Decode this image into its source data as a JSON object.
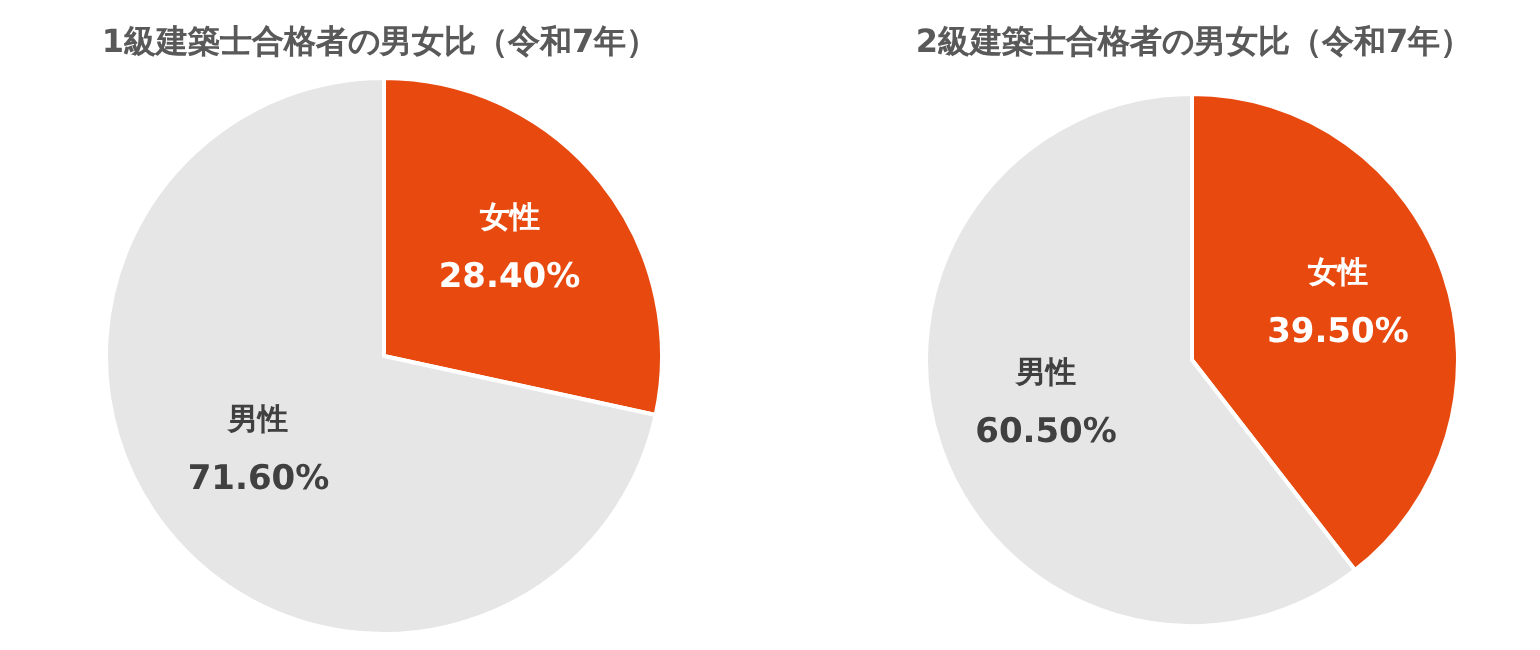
{
  "chart_data": [
    {
      "type": "pie",
      "title": "1級建築士合格者の男女比（令和7年）",
      "categories": [
        "女性",
        "男性"
      ],
      "values": [
        28.4,
        71.6
      ],
      "colors": [
        "#e8490f",
        "#e6e6e6"
      ],
      "value_labels": [
        "28.40%",
        "71.60%"
      ]
    },
    {
      "type": "pie",
      "title": "2級建築士合格者の男女比（令和7年）",
      "categories": [
        "女性",
        "男性"
      ],
      "values": [
        39.5,
        60.5
      ],
      "colors": [
        "#e8490f",
        "#e6e6e6"
      ],
      "value_labels": [
        "39.50%",
        "60.50%"
      ]
    }
  ]
}
